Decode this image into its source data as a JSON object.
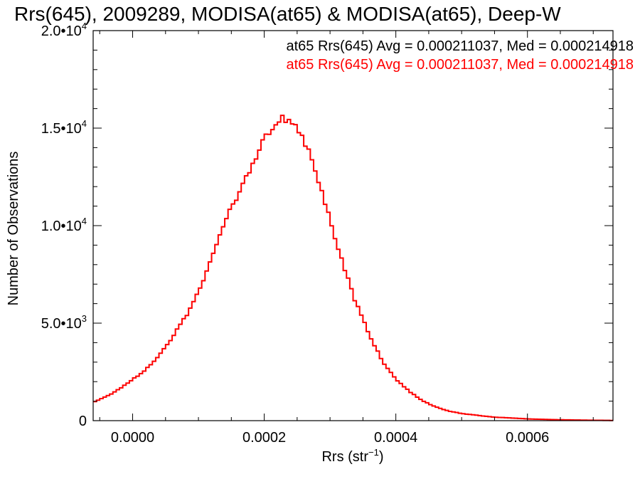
{
  "chart_data": {
    "type": "histogram-step",
    "title": "Rrs(645), 2009289, MODISA(at65) & MODISA(at65), Deep-W",
    "xlabel": "Rrs (str",
    "xlabel_exp": "−1",
    "xlabel_close": ")",
    "ylabel": "Number of Observations",
    "xlim": [
      -6e-05,
      0.00073
    ],
    "ylim": [
      0,
      20000
    ],
    "x_ticks": [
      {
        "value": 0.0,
        "label": "0.0000"
      },
      {
        "value": 0.0002,
        "label": "0.0002"
      },
      {
        "value": 0.0004,
        "label": "0.0004"
      },
      {
        "value": 0.0006,
        "label": "0.0006"
      }
    ],
    "y_ticks": [
      {
        "value": 0,
        "mant": "0",
        "exp": ""
      },
      {
        "value": 5000,
        "mant": "5.0•10",
        "exp": "3"
      },
      {
        "value": 10000,
        "mant": "1.0•10",
        "exp": "4"
      },
      {
        "value": 15000,
        "mant": "1.5•10",
        "exp": "4"
      },
      {
        "value": 20000,
        "mant": "2.0•10",
        "exp": "4"
      }
    ],
    "annotations": [
      {
        "text": "at65 Rrs(645) Avg = 0.000211037, Med = 0.000214918",
        "color": "#000000"
      },
      {
        "text": "at65 Rrs(645) Avg = 0.000211037, Med = 0.000214918",
        "color": "#ff0000"
      }
    ],
    "series": [
      {
        "color": "#000000",
        "bin_width": 5e-06,
        "x": [
          -6e-05,
          -4e-05,
          -2e-05,
          0.0,
          2e-05,
          4e-05,
          6e-05,
          8e-05,
          0.0001,
          0.00012,
          0.00014,
          0.00016,
          0.00018,
          0.0002,
          0.00022,
          0.00024,
          0.00026,
          0.00028,
          0.0003,
          0.00032,
          0.00034,
          0.00036,
          0.00038,
          0.0004,
          0.00042,
          0.00044,
          0.00046,
          0.00048,
          0.0005,
          0.00055,
          0.0006,
          0.00065,
          0.0007,
          0.00073
        ],
        "values": [
          950,
          1250,
          1600,
          2100,
          2650,
          3350,
          4200,
          5300,
          6700,
          8300,
          10000,
          11700,
          13100,
          14300,
          15200,
          15600,
          14500,
          12400,
          10300,
          8100,
          6000,
          4300,
          3050,
          2150,
          1500,
          1020,
          720,
          500,
          360,
          180,
          90,
          45,
          20,
          10
        ]
      },
      {
        "color": "#ff0000",
        "bin_width": 5e-06,
        "x": [
          -6e-05,
          -4e-05,
          -2e-05,
          0.0,
          2e-05,
          4e-05,
          6e-05,
          8e-05,
          0.0001,
          0.00012,
          0.00014,
          0.00016,
          0.00018,
          0.0002,
          0.00022,
          0.00024,
          0.00026,
          0.00028,
          0.0003,
          0.00032,
          0.00034,
          0.00036,
          0.00038,
          0.0004,
          0.00042,
          0.00044,
          0.00046,
          0.00048,
          0.0005,
          0.00055,
          0.0006,
          0.00065,
          0.0007,
          0.00073
        ],
        "values": [
          950,
          1250,
          1600,
          2100,
          2650,
          3350,
          4200,
          5300,
          6700,
          8300,
          10000,
          11700,
          13100,
          14300,
          15200,
          15600,
          14500,
          12400,
          10300,
          8100,
          6000,
          4300,
          3050,
          2150,
          1500,
          1020,
          720,
          500,
          360,
          180,
          90,
          45,
          20,
          10
        ]
      }
    ]
  }
}
